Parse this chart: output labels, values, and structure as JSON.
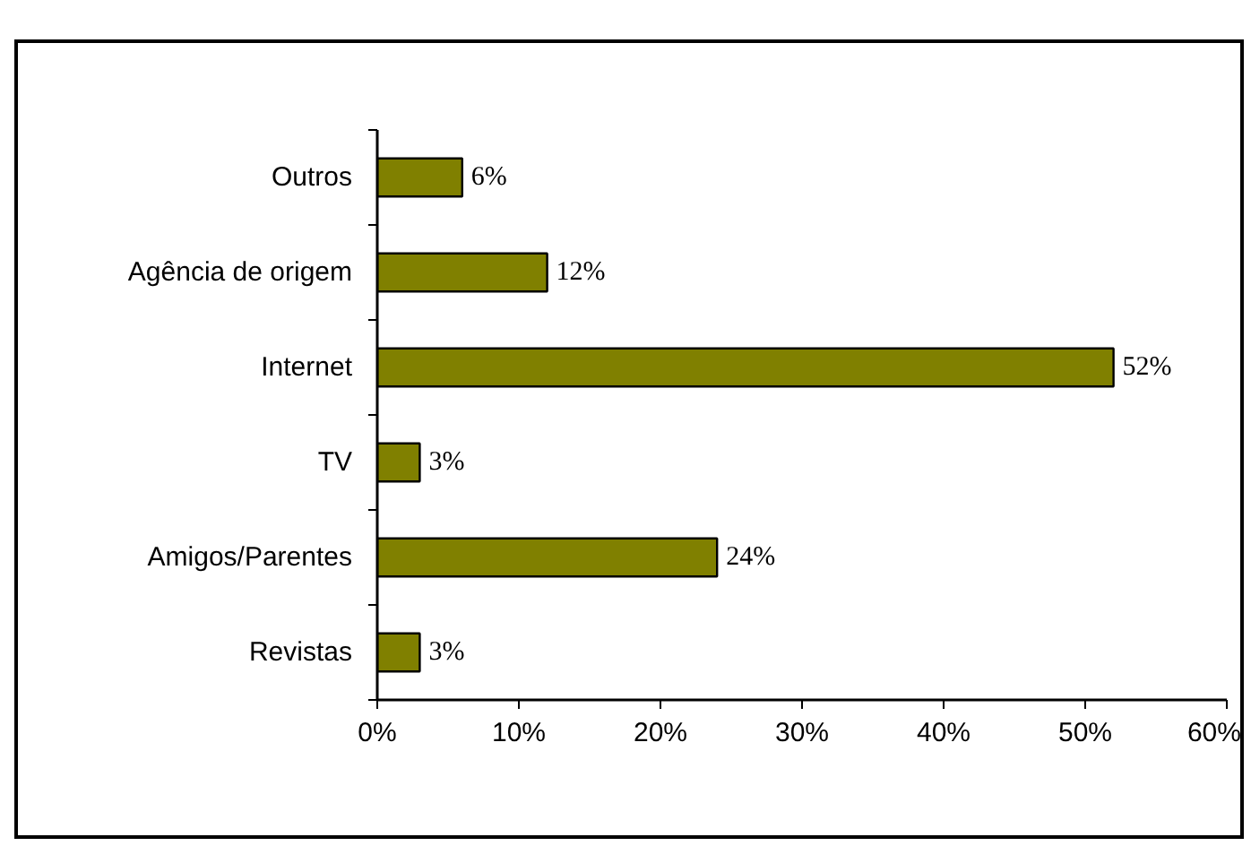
{
  "chart_data": {
    "type": "bar",
    "orientation": "horizontal",
    "categories": [
      "Outros",
      "Agência de origem",
      "Internet",
      "TV",
      "Amigos/Parentes",
      "Revistas"
    ],
    "values": [
      6,
      12,
      52,
      3,
      24,
      3
    ],
    "value_labels": [
      "6%",
      "12%",
      "52%",
      "3%",
      "24%",
      "3%"
    ],
    "color": "#808000",
    "xlim": [
      0,
      60
    ],
    "xticks": [
      {
        "value": 0,
        "label": "0%"
      },
      {
        "value": 10,
        "label": "10%"
      },
      {
        "value": 20,
        "label": "20%"
      },
      {
        "value": 30,
        "label": "30%"
      },
      {
        "value": 40,
        "label": "40%"
      },
      {
        "value": 50,
        "label": "50%"
      },
      {
        "value": 60,
        "label": "60%"
      }
    ],
    "grid": false
  }
}
